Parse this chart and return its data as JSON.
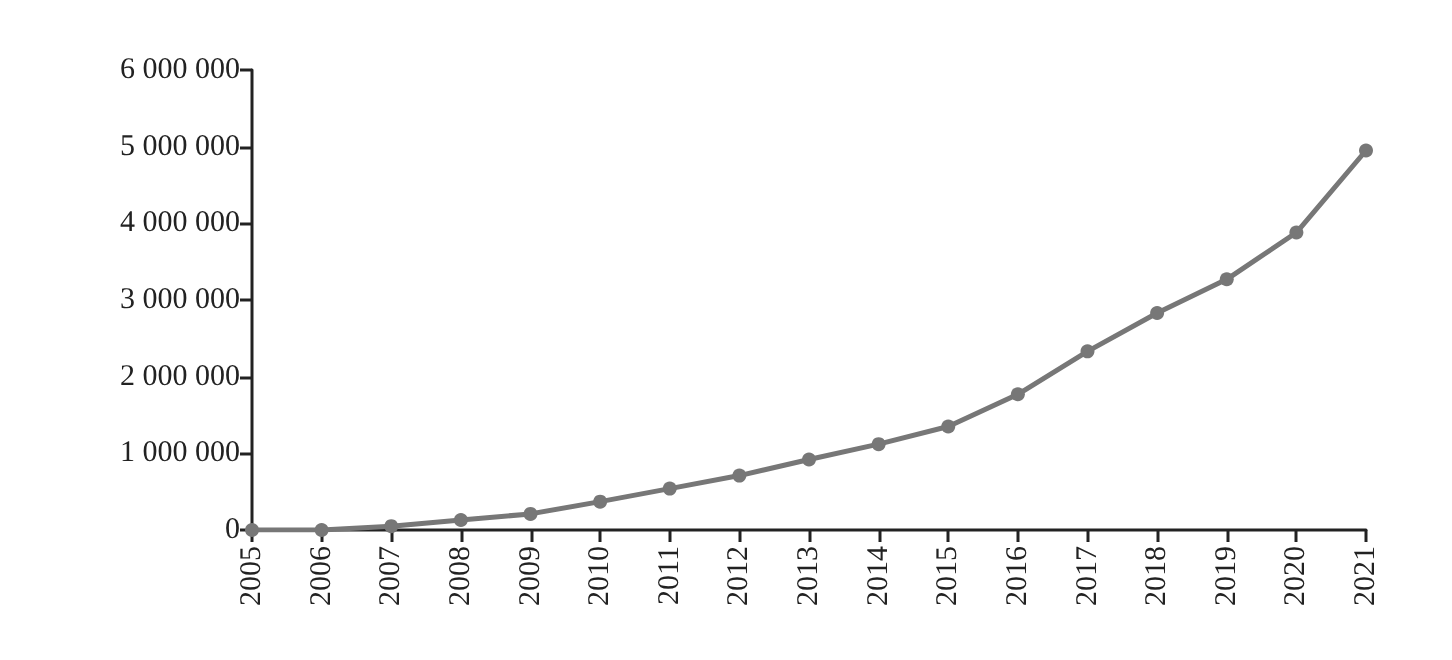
{
  "chart_data": {
    "type": "line",
    "categories": [
      "2005",
      "2006",
      "2007",
      "2008",
      "2009",
      "2010",
      "2011",
      "2012",
      "2013",
      "2014",
      "2015",
      "2016",
      "2017",
      "2018",
      "2019",
      "2020",
      "2021"
    ],
    "series": [
      {
        "color": "#777777",
        "values": [
          0,
          0,
          50000,
          130000,
          210000,
          370000,
          540000,
          710000,
          920000,
          1120000,
          1350000,
          1770000,
          2330000,
          2830000,
          3270000,
          3880000,
          4950000
        ]
      }
    ],
    "ylim": [
      0,
      6000000
    ],
    "yticks": [
      {
        "value": 0,
        "label": "0"
      },
      {
        "value": 1000000,
        "label": "1 000 000"
      },
      {
        "value": 2000000,
        "label": "2 000 000"
      },
      {
        "value": 3000000,
        "label": "3 000 000"
      },
      {
        "value": 4000000,
        "label": "4 000 000"
      },
      {
        "value": 5000000,
        "label": "5 000 000"
      },
      {
        "value": 6000000,
        "label": "6 000 000"
      }
    ],
    "grid": false,
    "marker": "circle",
    "line_style": "solid"
  }
}
